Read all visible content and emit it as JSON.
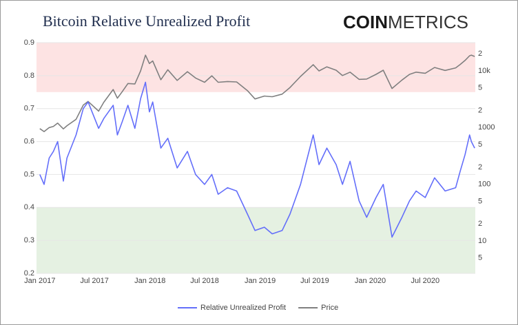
{
  "chart_data": {
    "type": "line",
    "title": "Bitcoin Relative Unrealized Profit",
    "logo": {
      "bold": "COIN",
      "light": "METRICS"
    },
    "x": [
      "2017-01-01",
      "2017-01-15",
      "2017-02-01",
      "2017-02-15",
      "2017-03-01",
      "2017-03-20",
      "2017-04-01",
      "2017-05-01",
      "2017-05-25",
      "2017-06-10",
      "2017-07-15",
      "2017-08-01",
      "2017-09-01",
      "2017-09-15",
      "2017-10-01",
      "2017-10-20",
      "2017-11-12",
      "2017-12-01",
      "2017-12-17",
      "2017-12-30",
      "2018-01-10",
      "2018-02-06",
      "2018-03-01",
      "2018-04-01",
      "2018-05-05",
      "2018-06-01",
      "2018-07-01",
      "2018-07-25",
      "2018-08-15",
      "2018-09-15",
      "2018-10-15",
      "2018-11-20",
      "2018-12-15",
      "2019-01-15",
      "2019-02-10",
      "2019-03-15",
      "2019-04-10",
      "2019-05-15",
      "2019-06-26",
      "2019-07-15",
      "2019-08-10",
      "2019-09-10",
      "2019-10-01",
      "2019-10-26",
      "2019-11-25",
      "2019-12-20",
      "2020-01-20",
      "2020-02-13",
      "2020-03-13",
      "2020-04-15",
      "2020-05-10",
      "2020-06-01",
      "2020-07-01",
      "2020-08-01",
      "2020-09-05",
      "2020-10-10",
      "2020-10-25",
      "2020-11-10",
      "2020-11-25",
      "2020-12-01",
      "2020-12-12"
    ],
    "series": [
      {
        "name": "Relative Unrealized Profit",
        "color": "#636efa",
        "axis": "y",
        "values": [
          0.5,
          0.47,
          0.55,
          0.57,
          0.6,
          0.48,
          0.55,
          0.62,
          0.7,
          0.72,
          0.64,
          0.67,
          0.71,
          0.62,
          0.66,
          0.71,
          0.64,
          0.73,
          0.78,
          0.69,
          0.72,
          0.58,
          0.61,
          0.52,
          0.57,
          0.5,
          0.47,
          0.5,
          0.44,
          0.46,
          0.45,
          0.38,
          0.33,
          0.34,
          0.32,
          0.33,
          0.38,
          0.47,
          0.62,
          0.53,
          0.58,
          0.53,
          0.47,
          0.54,
          0.42,
          0.37,
          0.43,
          0.47,
          0.31,
          0.37,
          0.42,
          0.45,
          0.43,
          0.49,
          0.45,
          0.46,
          0.51,
          0.56,
          0.62,
          0.6,
          0.58
        ]
      },
      {
        "name": "Price",
        "color": "#7f7f7f",
        "axis": "y2",
        "values": [
          960,
          850,
          1000,
          1050,
          1200,
          950,
          1080,
          1400,
          2500,
          2900,
          1950,
          2800,
          4700,
          3300,
          4300,
          6000,
          5900,
          10000,
          19000,
          13500,
          15000,
          7000,
          10500,
          6800,
          9700,
          7500,
          6300,
          8200,
          6300,
          6500,
          6400,
          4500,
          3200,
          3600,
          3500,
          3900,
          5100,
          8000,
          12900,
          10000,
          11800,
          10300,
          8300,
          9500,
          7100,
          7200,
          8700,
          10300,
          4900,
          6900,
          8700,
          9500,
          9100,
          11500,
          10200,
          11300,
          13000,
          15300,
          18500,
          19000,
          18000
        ]
      }
    ],
    "xlim": [
      "2016-12-21",
      "2020-12-14"
    ],
    "xticks": [
      {
        "value": "2017-01-01",
        "label": "Jan 2017"
      },
      {
        "value": "2017-07-01",
        "label": "Jul 2017"
      },
      {
        "value": "2018-01-01",
        "label": "Jan 2018"
      },
      {
        "value": "2018-07-01",
        "label": "Jul 2018"
      },
      {
        "value": "2019-01-01",
        "label": "Jan 2019"
      },
      {
        "value": "2019-07-01",
        "label": "Jul 2019"
      },
      {
        "value": "2020-01-01",
        "label": "Jan 2020"
      },
      {
        "value": "2020-07-01",
        "label": "Jul 2020"
      }
    ],
    "ylim": [
      0.2,
      0.9
    ],
    "yticks": [
      0.2,
      0.3,
      0.4,
      0.5,
      0.6,
      0.7,
      0.8,
      0.9
    ],
    "y2lim": [
      2.68,
      31500
    ],
    "y2log": true,
    "y2ticks": [
      5,
      10,
      {
        "value": 20,
        "label": "2"
      },
      {
        "value": 50,
        "label": "5"
      },
      100,
      {
        "value": 200,
        "label": "2"
      },
      {
        "value": 500,
        "label": "5"
      },
      1000,
      {
        "value": 2000,
        "label": "2"
      },
      {
        "value": 5000,
        "label": "5"
      },
      {
        "value": 10000,
        "label": "10k"
      },
      {
        "value": 20000,
        "label": "2"
      }
    ],
    "grid": true,
    "bands": [
      {
        "from": 0.75,
        "to": 0.9,
        "color": "#fde3e3"
      },
      {
        "from": 0.2,
        "to": 0.4,
        "color": "#e5f1e2"
      }
    ],
    "legend": "bottom"
  }
}
